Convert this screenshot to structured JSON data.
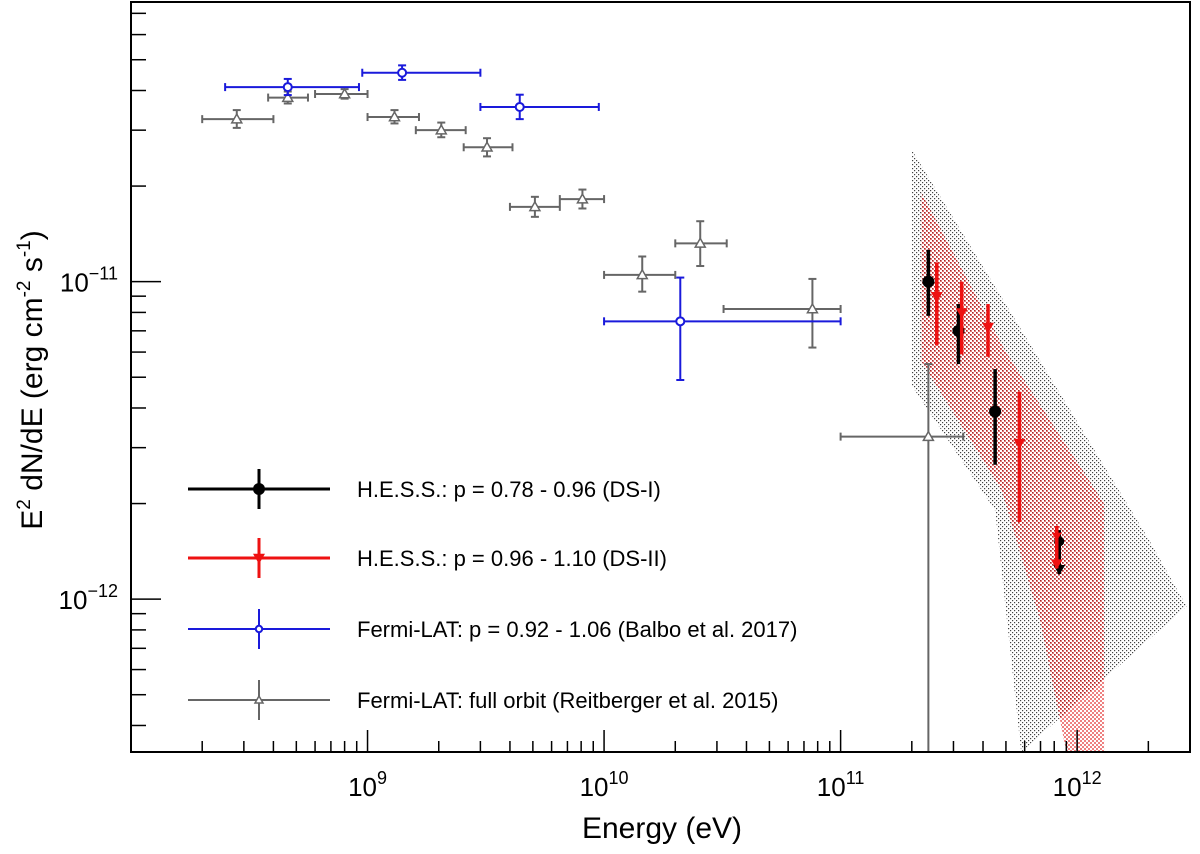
{
  "chart_data": {
    "type": "scatter",
    "xscale": "log",
    "yscale": "log",
    "xlim": [
      100000000.0,
      3000000000000.0
    ],
    "ylim": [
      3.3e-13,
      7.6e-11
    ],
    "xlabel": "Energy (eV)",
    "ylabel_parts": [
      "E",
      "2",
      " dN/dE (erg cm",
      "-2",
      " s",
      "-1",
      ")"
    ],
    "x_ticks": [
      {
        "value": 1000000000.0,
        "mantissa": "10",
        "exponent": "9"
      },
      {
        "value": 10000000000.0,
        "mantissa": "10",
        "exponent": "10"
      },
      {
        "value": 100000000000.0,
        "mantissa": "10",
        "exponent": "11"
      },
      {
        "value": 1000000000000.0,
        "mantissa": "10",
        "exponent": "12"
      }
    ],
    "y_ticks": [
      {
        "value": 1e-11,
        "mantissa": "10",
        "exponent": "−11"
      },
      {
        "value": 1e-12,
        "mantissa": "10",
        "exponent": "−12"
      }
    ],
    "series": [
      {
        "name": "Fermi-LAT: full orbit (Reitberger et al. 2015)",
        "color": "#666666",
        "marker": "open-triangle",
        "line_width": 2,
        "points": [
          {
            "x": 280000000.0,
            "xlo": 200000000.0,
            "xhi": 400000000.0,
            "y": 3.25e-11,
            "ylo": 3.05e-11,
            "yhi": 3.47e-11
          },
          {
            "x": 460000000.0,
            "xlo": 380000000.0,
            "xhi": 560000000.0,
            "y": 3.8e-11,
            "ylo": 3.64e-11,
            "yhi": 3.97e-11
          },
          {
            "x": 800000000.0,
            "xlo": 600000000.0,
            "xhi": 1000000000.0,
            "y": 3.9e-11,
            "ylo": 3.77e-11,
            "yhi": 4.04e-11
          },
          {
            "x": 1300000000.0,
            "xlo": 1000000000.0,
            "xhi": 1650000000.0,
            "y": 3.3e-11,
            "ylo": 3.15e-11,
            "yhi": 3.47e-11
          },
          {
            "x": 2050000000.0,
            "xlo": 1600000000.0,
            "xhi": 2600000000.0,
            "y": 3e-11,
            "ylo": 2.85e-11,
            "yhi": 3.17e-11
          },
          {
            "x": 3200000000.0,
            "xlo": 2550000000.0,
            "xhi": 4100000000.0,
            "y": 2.65e-11,
            "ylo": 2.48e-11,
            "yhi": 2.83e-11
          },
          {
            "x": 5100000000.0,
            "xlo": 4000000000.0,
            "xhi": 6500000000.0,
            "y": 1.72e-11,
            "ylo": 1.6e-11,
            "yhi": 1.85e-11
          },
          {
            "x": 8100000000.0,
            "xlo": 6500000000.0,
            "xhi": 10000000000.0,
            "y": 1.82e-11,
            "ylo": 1.7e-11,
            "yhi": 1.95e-11
          },
          {
            "x": 14500000000.0,
            "xlo": 10000000000.0,
            "xhi": 20000000000.0,
            "y": 1.05e-11,
            "ylo": 9.3e-12,
            "yhi": 1.2e-11
          },
          {
            "x": 25500000000.0,
            "xlo": 20000000000.0,
            "xhi": 33000000000.0,
            "y": 1.32e-11,
            "ylo": 1.12e-11,
            "yhi": 1.55e-11
          },
          {
            "x": 76000000000.0,
            "xlo": 32000000000.0,
            "xhi": 100000000000.0,
            "y": 8.2e-12,
            "ylo": 6.2e-12,
            "yhi": 1.02e-11
          },
          {
            "x": 235000000000.0,
            "xlo": 100000000000.0,
            "xhi": 330000000000.0,
            "y": 3.25e-12,
            "ylo": 3.3e-13,
            "yhi": 5.5e-12
          }
        ]
      },
      {
        "name": "Fermi-LAT: p = 0.92 - 1.06 (Balbo et al. 2017)",
        "color": "#1a1adb",
        "marker": "open-circle",
        "line_width": 2,
        "points": [
          {
            "x": 460000000.0,
            "xlo": 250000000.0,
            "xhi": 920000000.0,
            "y": 4.1e-11,
            "ylo": 3.87e-11,
            "yhi": 4.35e-11
          },
          {
            "x": 1400000000.0,
            "xlo": 950000000.0,
            "xhi": 3000000000.0,
            "y": 4.55e-11,
            "ylo": 4.32e-11,
            "yhi": 4.8e-11
          },
          {
            "x": 4400000000.0,
            "xlo": 3000000000.0,
            "xhi": 9500000000.0,
            "y": 3.55e-11,
            "ylo": 3.25e-11,
            "yhi": 3.88e-11
          },
          {
            "x": 21000000000.0,
            "xlo": 10000000000.0,
            "xhi": 100000000000.0,
            "y": 7.5e-12,
            "ylo": 4.9e-12,
            "yhi": 1.03e-11
          }
        ]
      },
      {
        "name": "H.E.S.S.: p = 0.78 - 0.96 (DS-I)",
        "color": "#000000",
        "marker": "filled-circle",
        "line_width": 3.5,
        "points": [
          {
            "x": 235000000000.0,
            "y": 1e-11,
            "ylo": 7.8e-12,
            "yhi": 1.26e-11
          },
          {
            "x": 315000000000.0,
            "y": 7e-12,
            "ylo": 5.5e-12,
            "yhi": 8.5e-12
          },
          {
            "x": 450000000000.0,
            "y": 3.9e-12,
            "ylo": 2.65e-12,
            "yhi": 5.3e-12
          },
          {
            "x": 840000000000.0,
            "y": 1.52e-12,
            "ylo": 1.2e-12,
            "yhi": 1.65e-12,
            "upper_limit": true
          }
        ]
      },
      {
        "name": "H.E.S.S.: p = 0.96 - 1.10 (DS-II)",
        "color": "#ee1111",
        "marker": "filled-triangle-down",
        "line_width": 3.5,
        "points": [
          {
            "x": 255000000000.0,
            "y": 9e-12,
            "ylo": 6.3e-12,
            "yhi": 1.15e-11
          },
          {
            "x": 325000000000.0,
            "y": 8e-12,
            "ylo": 5.9e-12,
            "yhi": 1e-11
          },
          {
            "x": 420000000000.0,
            "y": 7.2e-12,
            "ylo": 5.8e-12,
            "yhi": 8.5e-12
          },
          {
            "x": 570000000000.0,
            "y": 3.1e-12,
            "ylo": 1.75e-12,
            "yhi": 4.5e-12
          },
          {
            "x": 820000000000.0,
            "y": 1.58e-12,
            "ylo": 1.25e-12,
            "yhi": 1.7e-12,
            "upper_limit": true
          }
        ]
      }
    ],
    "bands": [
      {
        "name": "DS-I confidence band",
        "color": "#222222",
        "pattern": "dots",
        "upper": [
          [
            200000000000.0,
            2.6e-11
          ],
          [
            2000000000000.0,
            1.55e-12
          ],
          [
            2900000000000.0,
            9.5e-13
          ]
        ],
        "lower": [
          [
            200000000000.0,
            4.7e-12
          ],
          [
            450000000000.0,
            1.9e-12
          ],
          [
            580000000000.0,
            3.3e-13
          ]
        ]
      },
      {
        "name": "DS-II confidence band",
        "color": "#e01818",
        "pattern": "dots",
        "upper": [
          [
            220000000000.0,
            1.9e-11
          ],
          [
            500000000000.0,
            6e-12
          ],
          [
            1300000000000.0,
            2e-12
          ]
        ],
        "lower": [
          [
            220000000000.0,
            5.6e-12
          ],
          [
            480000000000.0,
            2.2e-12
          ],
          [
            700000000000.0,
            8.5e-13
          ],
          [
            900000000000.0,
            3.3e-13
          ],
          [
            1300000000000.0,
            3.3e-13
          ]
        ]
      }
    ],
    "legend": {
      "placement": "bottom-left",
      "entries": [
        {
          "label": "H.E.S.S.: p = 0.78 - 0.96 (DS-I)",
          "series": 2
        },
        {
          "label": "H.E.S.S.: p = 0.96 - 1.10 (DS-II)",
          "series": 3
        },
        {
          "label": "Fermi-LAT: p = 0.92 - 1.06 (Balbo et al. 2017)",
          "series": 1
        },
        {
          "label": "Fermi-LAT: full orbit (Reitberger et al. 2015)",
          "series": 0
        }
      ]
    }
  }
}
